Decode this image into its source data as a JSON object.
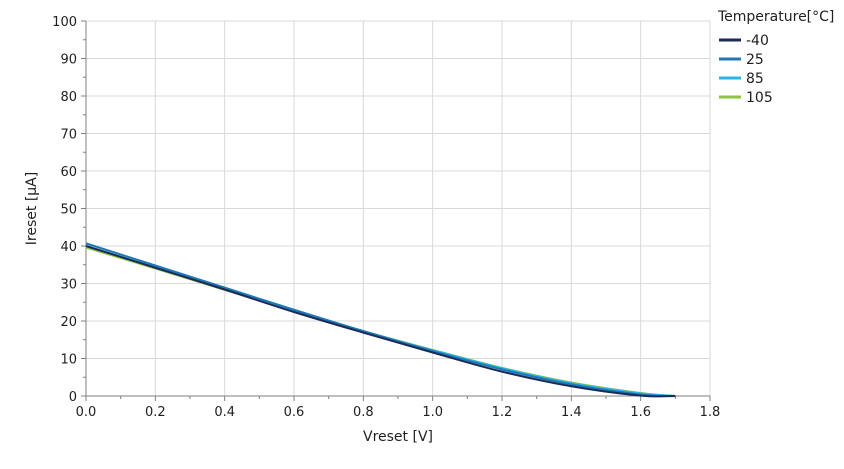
{
  "chart_data": {
    "type": "line",
    "title": "",
    "xlabel": "Vreset [V]",
    "ylabel": "Ireset [μA]",
    "xlim": [
      0,
      1.8
    ],
    "ylim": [
      0,
      100
    ],
    "x_ticks": [
      "0.0",
      "0.2",
      "0.4",
      "0.6",
      "0.8",
      "1.0",
      "1.2",
      "1.4",
      "1.6",
      "1.8"
    ],
    "y_ticks": [
      "0",
      "10",
      "20",
      "30",
      "40",
      "50",
      "60",
      "70",
      "80",
      "90",
      "100"
    ],
    "grid": true,
    "legend": {
      "title": "Temperature[°C]",
      "position": "top-right, outside plot"
    },
    "x": [
      0.0,
      0.2,
      0.4,
      0.6,
      0.8,
      1.0,
      1.2,
      1.4,
      1.6,
      1.7
    ],
    "series": [
      {
        "name": "-40",
        "color": "#1a2a5a",
        "values": [
          40.0,
          34.2,
          28.4,
          22.4,
          16.9,
          11.6,
          6.5,
          2.6,
          0.1,
          0.0
        ]
      },
      {
        "name": "25",
        "color": "#1f78b4",
        "values": [
          40.7,
          34.8,
          28.9,
          23.0,
          17.3,
          12.0,
          7.1,
          3.1,
          0.4,
          0.0
        ]
      },
      {
        "name": "85",
        "color": "#29b6e8",
        "values": [
          40.0,
          34.3,
          28.5,
          22.8,
          17.3,
          12.2,
          7.4,
          3.4,
          0.7,
          0.0
        ]
      },
      {
        "name": "105",
        "color": "#8cc63f",
        "values": [
          39.6,
          34.0,
          28.3,
          22.7,
          17.3,
          12.3,
          7.5,
          3.6,
          0.8,
          0.0
        ]
      }
    ]
  }
}
